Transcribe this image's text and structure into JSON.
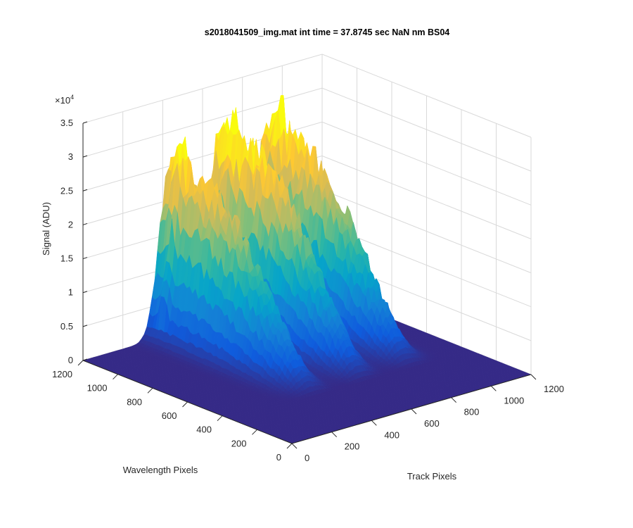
{
  "chart_data": {
    "type": "surface",
    "title": "s2018041509_img.mat int time = 37.8745 sec  NaN nm BS04",
    "xlabel": "Track Pixels",
    "ylabel": "Wavelength Pixels",
    "zlabel": "Signal (ADU)",
    "z_exponent_label": "×10",
    "z_exponent_power": "4",
    "xlim": [
      0,
      1200
    ],
    "ylim": [
      0,
      1200
    ],
    "zlim": [
      0,
      35000
    ],
    "x_ticks": [
      "0",
      "200",
      "400",
      "600",
      "800",
      "1000",
      "1200"
    ],
    "y_ticks": [
      "0",
      "200",
      "400",
      "600",
      "800",
      "1000",
      "1200"
    ],
    "z_ticks": [
      "0",
      "0.5",
      "1",
      "1.5",
      "2",
      "2.5",
      "3",
      "3.5"
    ],
    "grid": true,
    "colormap": "parula",
    "colors": [
      "#352a87",
      "#0f5cdd",
      "#1481d6",
      "#06a4ca",
      "#2eb7a4",
      "#87bf77",
      "#d1bb59",
      "#fec832",
      "#f9fb0e"
    ],
    "track_profiles": [
      {
        "center_track": 430,
        "peak_signal": 25000
      },
      {
        "center_track": 680,
        "peak_signal": 28000
      },
      {
        "center_track": 920,
        "peak_signal": 26500
      }
    ],
    "signal_extent_wavelength_pixels": [
      350,
      1200
    ],
    "secondary_ridge": {
      "wavelength_pixel": 1120,
      "signal": 7000
    }
  }
}
